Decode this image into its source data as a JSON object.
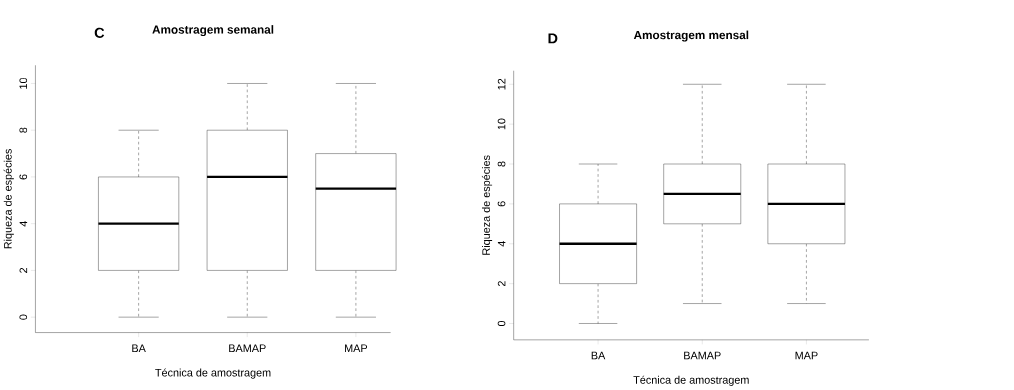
{
  "chart_data": [
    {
      "type": "box",
      "title": "Amostragem semanal",
      "xlabel": "Técnica de amostragem",
      "ylabel": "Riqueza de espécies",
      "annotations": [
        "C"
      ],
      "categories": [
        "BA",
        "BAMAP",
        "MAP"
      ],
      "boxes": [
        {
          "low": 0,
          "q1": 2,
          "median": 4,
          "q3": 6,
          "high": 8
        },
        {
          "low": 0,
          "q1": 2,
          "median": 6,
          "q3": 8,
          "high": 10
        },
        {
          "low": 0,
          "q1": 2,
          "median": 5.5,
          "q3": 7,
          "high": 10
        }
      ],
      "ylim": [
        -0.66,
        10.78
      ],
      "yticks": [
        0,
        2,
        4,
        6,
        8,
        10
      ]
    },
    {
      "type": "box",
      "title": "Amostragem mensal",
      "xlabel": "Técnica de amostragem",
      "ylabel": "Riqueza de espécies",
      "annotations": [
        "D"
      ],
      "categories": [
        "BA",
        "BAMAP",
        "MAP"
      ],
      "boxes": [
        {
          "low": 0,
          "q1": 2,
          "median": 4,
          "q3": 6,
          "high": 8
        },
        {
          "low": 1,
          "q1": 5,
          "median": 6.5,
          "q3": 8,
          "high": 12
        },
        {
          "low": 1,
          "q1": 4,
          "median": 6,
          "q3": 8,
          "high": 12
        }
      ],
      "ylim": [
        -0.82,
        12.68
      ],
      "yticks": [
        0,
        2,
        4,
        6,
        8,
        10,
        12
      ]
    }
  ]
}
